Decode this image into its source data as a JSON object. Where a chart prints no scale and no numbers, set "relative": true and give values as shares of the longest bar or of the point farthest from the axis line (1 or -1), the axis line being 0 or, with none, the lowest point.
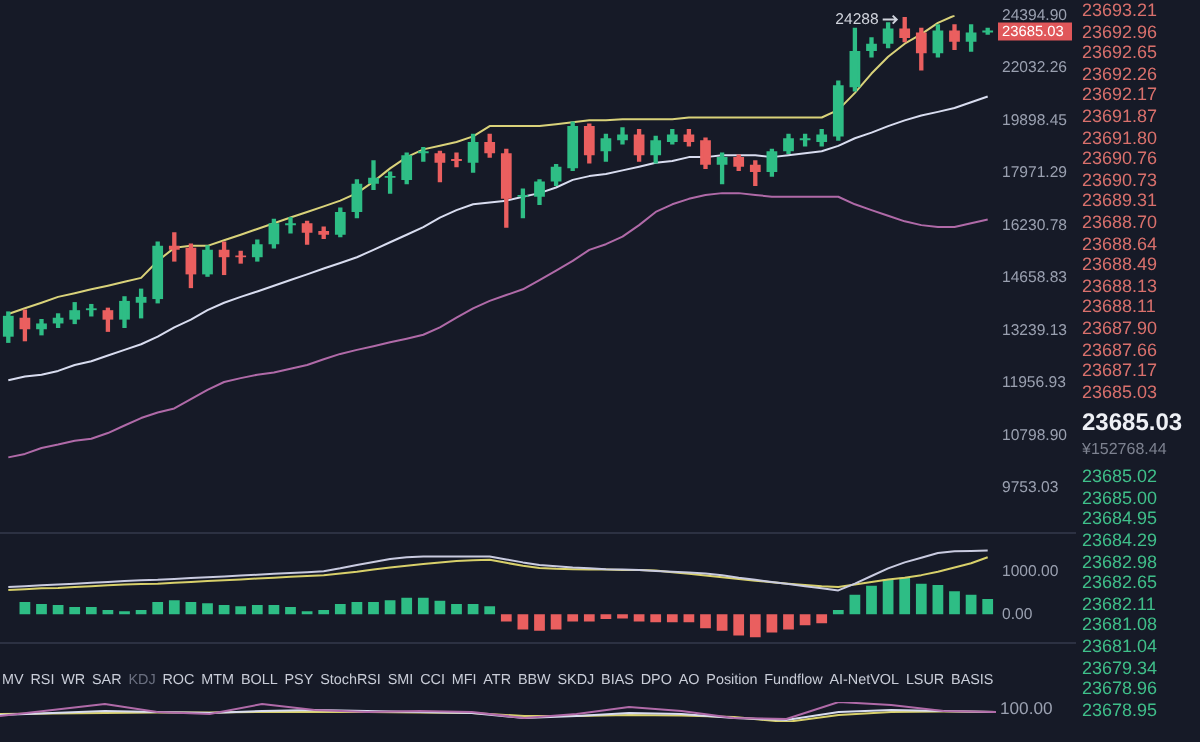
{
  "chart_data": [
    {
      "type": "candlestick",
      "categories": [
        null,
        null,
        null,
        null,
        null,
        null,
        null,
        null,
        null,
        null,
        null,
        null,
        null,
        null,
        null,
        null,
        null,
        null,
        null,
        null,
        null,
        null,
        null,
        null,
        null,
        null,
        null,
        null,
        null,
        null,
        null,
        null,
        null,
        null,
        null,
        null,
        null,
        null,
        null,
        null,
        null,
        null,
        null,
        null,
        null,
        null,
        null,
        null,
        null,
        null,
        null,
        null,
        null,
        null,
        null,
        null,
        null,
        null,
        null,
        null
      ],
      "ohlc": [
        [
          13080,
          13720,
          12940,
          13620
        ],
        [
          13570,
          13770,
          12980,
          13270
        ],
        [
          13270,
          13520,
          13130,
          13420
        ],
        [
          13420,
          13670,
          13320,
          13570
        ],
        [
          13520,
          13970,
          13420,
          13770
        ],
        [
          13770,
          13920,
          13620,
          13820
        ],
        [
          13770,
          13820,
          13220,
          13520
        ],
        [
          13520,
          14130,
          13320,
          14020
        ],
        [
          13970,
          14340,
          13570,
          14130
        ],
        [
          14070,
          15710,
          13970,
          15600
        ],
        [
          15600,
          16000,
          15150,
          15480
        ],
        [
          15540,
          15650,
          14390,
          14760
        ],
        [
          14760,
          15600,
          14710,
          15480
        ],
        [
          15480,
          15710,
          14760,
          15260
        ],
        [
          15310,
          15430,
          15090,
          15260
        ],
        [
          15260,
          15770,
          15150,
          15650
        ],
        [
          15650,
          16420,
          15540,
          16300
        ],
        [
          16240,
          16480,
          16000,
          16300
        ],
        [
          16300,
          16360,
          15650,
          16000
        ],
        [
          16060,
          16180,
          15830,
          15940
        ],
        [
          15940,
          16780,
          15880,
          16660
        ],
        [
          16660,
          17730,
          16480,
          17600
        ],
        [
          17600,
          18390,
          17410,
          17800
        ],
        [
          17800,
          18000,
          17280,
          17860
        ],
        [
          17730,
          18670,
          17600,
          18600
        ],
        [
          18670,
          18870,
          18390,
          18740
        ],
        [
          18670,
          18740,
          17670,
          18330
        ],
        [
          18460,
          18670,
          18190,
          18390
        ],
        [
          18330,
          19360,
          18000,
          19080
        ],
        [
          19080,
          19360,
          18530,
          18670
        ],
        [
          18670,
          18810,
          16180,
          17090
        ],
        [
          17160,
          17410,
          16480,
          17220
        ],
        [
          17160,
          17730,
          16910,
          17670
        ],
        [
          17670,
          18260,
          17540,
          18190
        ],
        [
          18130,
          19830,
          18060,
          19680
        ],
        [
          19680,
          19750,
          18330,
          18600
        ],
        [
          18740,
          19360,
          18390,
          19220
        ],
        [
          19150,
          19610,
          19010,
          19360
        ],
        [
          19360,
          19540,
          18390,
          18600
        ],
        [
          18600,
          19290,
          18330,
          19150
        ],
        [
          19080,
          19540,
          19010,
          19360
        ],
        [
          19360,
          19540,
          18940,
          19080
        ],
        [
          19150,
          19220,
          18130,
          18260
        ],
        [
          18260,
          18670,
          17600,
          18530
        ],
        [
          18530,
          18600,
          18060,
          18190
        ],
        [
          18260,
          18390,
          17540,
          18000
        ],
        [
          18000,
          18810,
          17860,
          18740
        ],
        [
          18740,
          19360,
          18670,
          19220
        ],
        [
          19150,
          19360,
          18940,
          19220
        ],
        [
          19080,
          19540,
          18940,
          19360
        ],
        [
          19290,
          21470,
          19150,
          21300
        ],
        [
          21220,
          23780,
          21070,
          22760
        ],
        [
          22760,
          23350,
          22510,
          23090
        ],
        [
          23090,
          24040,
          22920,
          23780
        ],
        [
          23780,
          24288,
          23180,
          23350
        ],
        [
          23600,
          23780,
          21950,
          22670
        ],
        [
          22670,
          23950,
          22510,
          23690
        ],
        [
          23690,
          23950,
          22840,
          23180
        ],
        [
          23180,
          23950,
          22760,
          23600
        ],
        [
          23600,
          23780,
          23520,
          23685.03
        ]
      ],
      "colors": [
        "#2ebd85",
        "#ea5f5f",
        "#2ebd85",
        "#2ebd85",
        "#2ebd85",
        "#2ebd85",
        "#ea5f5f",
        "#2ebd85",
        "#2ebd85",
        "#2ebd85",
        "#ea5f5f",
        "#ea5f5f",
        "#2ebd85",
        "#ea5f5f",
        "#ea5f5f",
        "#2ebd85",
        "#2ebd85",
        "#2ebd85",
        "#ea5f5f",
        "#ea5f5f",
        "#2ebd85",
        "#2ebd85",
        "#2ebd85",
        "#2ebd85",
        "#2ebd85",
        "#2ebd85",
        "#ea5f5f",
        "#ea5f5f",
        "#2ebd85",
        "#ea5f5f",
        "#ea5f5f",
        "#2ebd85",
        "#2ebd85",
        "#2ebd85",
        "#2ebd85",
        "#ea5f5f",
        "#2ebd85",
        "#2ebd85",
        "#ea5f5f",
        "#2ebd85",
        "#2ebd85",
        "#ea5f5f",
        "#ea5f5f",
        "#2ebd85",
        "#ea5f5f",
        "#ea5f5f",
        "#2ebd85",
        "#2ebd85",
        "#2ebd85",
        "#2ebd85",
        "#2ebd85",
        "#2ebd85",
        "#2ebd85",
        "#2ebd85",
        "#ea5f5f",
        "#ea5f5f",
        "#2ebd85",
        "#ea5f5f",
        "#2ebd85",
        "#2ebd85"
      ],
      "series": [
        {
          "type": "line",
          "color": "#d9d27a",
          "values": [
            13670,
            13820,
            13970,
            14130,
            14230,
            14340,
            14440,
            14550,
            14660,
            15150,
            15540,
            15600,
            15600,
            15770,
            15940,
            16120,
            16300,
            16480,
            16660,
            16840,
            17030,
            17280,
            17670,
            18130,
            18530,
            18810,
            18940,
            19080,
            19290,
            19680,
            19680,
            19680,
            19680,
            19750,
            19830,
            19900,
            19900,
            19940,
            19940,
            19940,
            19940,
            20010,
            20010,
            20010,
            20010,
            20010,
            20010,
            20010,
            20010,
            20010,
            20310,
            20990,
            21790,
            22510,
            23090,
            23520,
            24040,
            24390,
            null,
            null
          ]
        },
        {
          "type": "line",
          "color": "#d8dcef",
          "values": [
            12020,
            12110,
            12150,
            12240,
            12380,
            12470,
            12610,
            12750,
            12890,
            13080,
            13320,
            13520,
            13770,
            13970,
            14130,
            14280,
            14440,
            14600,
            14760,
            14930,
            15090,
            15260,
            15480,
            15710,
            15940,
            16180,
            16480,
            16720,
            16910,
            16970,
            17030,
            17160,
            17280,
            17470,
            17730,
            17860,
            17930,
            18060,
            18190,
            18330,
            18390,
            18530,
            18530,
            18600,
            18600,
            18600,
            18530,
            18600,
            18670,
            18740,
            18940,
            19220,
            19430,
            19680,
            19900,
            20090,
            20230,
            20380,
            20610,
            20840
          ]
        },
        {
          "type": "line",
          "color": "#b06aa8",
          "values": [
            10350,
            10420,
            10540,
            10610,
            10690,
            10730,
            10850,
            11010,
            11170,
            11290,
            11380,
            11590,
            11800,
            11980,
            12070,
            12150,
            12200,
            12290,
            12380,
            12520,
            12650,
            12750,
            12840,
            12940,
            13030,
            13130,
            13320,
            13570,
            13820,
            14020,
            14180,
            14340,
            14600,
            14870,
            15150,
            15480,
            15650,
            15880,
            16240,
            16660,
            16910,
            17090,
            17220,
            17280,
            17280,
            17220,
            17160,
            17160,
            17160,
            17160,
            17160,
            16910,
            16720,
            16540,
            16360,
            16240,
            16180,
            16180,
            16300,
            16420
          ]
        }
      ],
      "log": true,
      "ylim": [
        9753.03,
        24394.9
      ],
      "yticks": [
        {
          "value": 9753.03,
          "label": "9753.03"
        },
        {
          "value": 10798.9,
          "label": "10798.90"
        },
        {
          "value": 11956.93,
          "label": "11956.93"
        },
        {
          "value": 13239.13,
          "label": "13239.13"
        },
        {
          "value": 14658.83,
          "label": "14658.83"
        },
        {
          "value": 16230.78,
          "label": "16230.78"
        },
        {
          "value": 17971.29,
          "label": "17971.29"
        },
        {
          "value": 19898.45,
          "label": "19898.45"
        },
        {
          "value": 22032.26,
          "label": "22032.26"
        },
        {
          "value": 24394.9,
          "label": "24394.90"
        }
      ],
      "tick_labels": "y",
      "annotations": [
        "24288",
        "23685.03",
        "23693.21",
        "23692.96",
        "23692.65",
        "23692.26",
        "23692.17",
        "23691.87",
        "23691.80",
        "23690.76",
        "23690.73",
        "23689.31",
        "23688.70",
        "23688.64",
        "23688.49",
        "23688.13",
        "23688.11",
        "23687.90",
        "23687.66",
        "23687.17",
        "23685.03",
        "23685.03",
        "¥152768.44",
        "23685.02",
        "23685.00",
        "23684.95",
        "23684.29",
        "23682.98",
        "23682.65",
        "23682.11",
        "23681.08",
        "23681.04",
        "23679.34",
        "23678.96",
        "23678.95"
      ]
    },
    {
      "type": "bar",
      "categories": [
        null,
        null,
        null,
        null,
        null,
        null,
        null,
        null,
        null,
        null,
        null,
        null,
        null,
        null,
        null,
        null,
        null,
        null,
        null,
        null,
        null,
        null,
        null,
        null,
        null,
        null,
        null,
        null,
        null,
        null,
        null,
        null,
        null,
        null,
        null,
        null,
        null,
        null,
        null,
        null,
        null,
        null,
        null,
        null,
        null,
        null,
        null,
        null,
        null,
        null,
        null,
        null,
        null,
        null,
        null,
        null,
        null,
        null,
        null,
        null
      ],
      "series": [
        {
          "type": "bar",
          "values": [
            null,
            290,
            240,
            220,
            170,
            170,
            100,
            70,
            100,
            290,
            330,
            290,
            260,
            220,
            190,
            220,
            220,
            170,
            70,
            100,
            240,
            290,
            290,
            330,
            390,
            390,
            320,
            240,
            240,
            190,
            -170,
            -360,
            -390,
            -360,
            -170,
            -170,
            -110,
            -100,
            -170,
            -190,
            -190,
            -190,
            -330,
            -390,
            -500,
            -540,
            -430,
            -360,
            -260,
            -210,
            100,
            460,
            670,
            820,
            860,
            720,
            690,
            540,
            460,
            360
          ],
          "colors": [
            "#2ebd85",
            "#2ebd85",
            "#2ebd85",
            "#2ebd85",
            "#2ebd85",
            "#2ebd85",
            "#2ebd85",
            "#2ebd85",
            "#2ebd85",
            "#2ebd85",
            "#2ebd85",
            "#2ebd85",
            "#2ebd85",
            "#2ebd85",
            "#2ebd85",
            "#2ebd85",
            "#2ebd85",
            "#2ebd85",
            "#2ebd85",
            "#2ebd85",
            "#2ebd85",
            "#2ebd85",
            "#2ebd85",
            "#2ebd85",
            "#2ebd85",
            "#2ebd85",
            "#2ebd85",
            "#2ebd85",
            "#2ebd85",
            "#2ebd85",
            "#ea5f5f",
            "#ea5f5f",
            "#ea5f5f",
            "#ea5f5f",
            "#ea5f5f",
            "#ea5f5f",
            "#ea5f5f",
            "#ea5f5f",
            "#ea5f5f",
            "#ea5f5f",
            "#ea5f5f",
            "#ea5f5f",
            "#ea5f5f",
            "#ea5f5f",
            "#ea5f5f",
            "#ea5f5f",
            "#ea5f5f",
            "#ea5f5f",
            "#ea5f5f",
            "#ea5f5f",
            "#2ebd85",
            "#2ebd85",
            "#2ebd85",
            "#2ebd85",
            "#2ebd85",
            "#2ebd85",
            "#2ebd85",
            "#2ebd85",
            "#2ebd85",
            "#2ebd85"
          ]
        },
        {
          "type": "line",
          "color": "#c9cbe0",
          "values": [
            640,
            660,
            680,
            700,
            720,
            740,
            760,
            780,
            800,
            810,
            830,
            850,
            870,
            890,
            910,
            930,
            950,
            970,
            990,
            1010,
            1080,
            1160,
            1230,
            1300,
            1340,
            1360,
            1360,
            1360,
            1360,
            1360,
            1290,
            1220,
            1160,
            1130,
            1100,
            1080,
            1060,
            1050,
            1040,
            1020,
            1000,
            980,
            960,
            920,
            860,
            810,
            760,
            710,
            660,
            610,
            560,
            720,
            900,
            1080,
            1220,
            1330,
            1440,
            1480,
            1490,
            1500
          ]
        },
        {
          "type": "line",
          "color": "#d8d06a",
          "values": [
            570,
            590,
            610,
            620,
            640,
            660,
            680,
            700,
            710,
            720,
            740,
            760,
            780,
            800,
            820,
            840,
            860,
            880,
            900,
            920,
            960,
            1000,
            1050,
            1100,
            1140,
            1180,
            1220,
            1250,
            1270,
            1280,
            1210,
            1140,
            1090,
            1070,
            1060,
            1050,
            1050,
            1040,
            1040,
            1030,
            990,
            950,
            910,
            870,
            830,
            790,
            750,
            720,
            690,
            660,
            640,
            700,
            760,
            820,
            860,
            920,
            1000,
            1100,
            1200,
            1340
          ]
        }
      ],
      "ylim": [
        -700,
        1950
      ],
      "yticks": [
        {
          "value": 0,
          "label": "0.00"
        },
        {
          "value": 1000,
          "label": "1000.00"
        }
      ],
      "tick_labels": "y",
      "annotations": [
        "MV",
        "RSI",
        "WR",
        "SAR",
        "KDJ",
        "ROC",
        "MTM",
        "BOLL",
        "PSY",
        "StochRSI",
        "SMI",
        "CCI",
        "MFI",
        "ATR",
        "BBW",
        "SKDJ",
        "BIAS",
        "DPO",
        "AO",
        "Position",
        "Fundflow",
        "AI-NetVOL",
        "LSUR",
        "BASIS"
      ]
    },
    {
      "type": "line",
      "relative": true,
      "categories": [
        null,
        null,
        null,
        null,
        null,
        null,
        null,
        null,
        null,
        null,
        null,
        null,
        null,
        null,
        null,
        null,
        null,
        null,
        null,
        null
      ],
      "series": [
        {
          "color": "#b06aa8",
          "values": [
            0.3,
            0.6,
            0.9,
            0.5,
            0.4,
            0.9,
            0.6,
            0.5,
            0.55,
            0.5,
            0.2,
            0.4,
            0.75,
            0.55,
            0.2,
            0.15,
            1,
            0.85,
            0.55,
            0.5
          ]
        },
        {
          "color": "#d8dcef",
          "values": [
            0.35,
            0.45,
            0.55,
            0.5,
            0.45,
            0.55,
            0.6,
            0.55,
            0.5,
            0.45,
            0.2,
            0.3,
            0.45,
            0.4,
            0.2,
            0.1,
            0.5,
            0.6,
            0.55,
            0.5
          ]
        },
        {
          "color": "#d8d06a",
          "values": [
            0.4,
            0.42,
            0.45,
            0.47,
            0.48,
            0.5,
            0.5,
            0.5,
            0.48,
            0.45,
            0.3,
            0.3,
            0.35,
            0.33,
            0.25,
            0,
            0.35,
            0.5,
            0.52,
            0.5
          ]
        }
      ],
      "tick_labels": false,
      "annotations": [
        "100.00"
      ]
    }
  ]
}
